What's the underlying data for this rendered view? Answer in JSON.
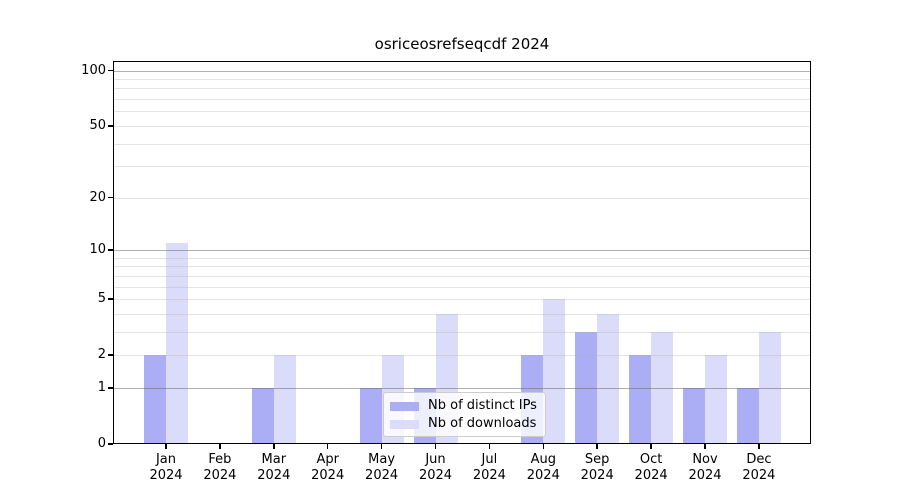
{
  "title": "osriceosrefseqcdf 2024",
  "y_axis": {
    "ticks": [
      100,
      50,
      20,
      10,
      5,
      2,
      1,
      0
    ],
    "tick_labels": [
      "100",
      "50",
      "20",
      "10",
      "5",
      "2",
      "1",
      "0"
    ]
  },
  "x_axis": {
    "months": [
      "Jan",
      "Feb",
      "Mar",
      "Apr",
      "May",
      "Jun",
      "Jul",
      "Aug",
      "Sep",
      "Oct",
      "Nov",
      "Dec"
    ],
    "year": "2024"
  },
  "legend": {
    "items": [
      {
        "label": "Nb of distinct IPs",
        "color": "#abadf5"
      },
      {
        "label": "Nb of downloads",
        "color": "#dbdcfa"
      }
    ]
  },
  "chart_data": {
    "type": "bar",
    "title": "osriceosrefseqcdf 2024",
    "categories": [
      "Jan 2024",
      "Feb 2024",
      "Mar 2024",
      "Apr 2024",
      "May 2024",
      "Jun 2024",
      "Jul 2024",
      "Aug 2024",
      "Sep 2024",
      "Oct 2024",
      "Nov 2024",
      "Dec 2024"
    ],
    "series": [
      {
        "name": "Nb of distinct IPs",
        "color": "#abadf5",
        "values": [
          2,
          0,
          1,
          0,
          1,
          1,
          0,
          2,
          3,
          2,
          1,
          1
        ]
      },
      {
        "name": "Nb of downloads",
        "color": "#dbdcfa",
        "values": [
          11,
          0,
          2,
          0,
          2,
          4,
          0,
          5,
          4,
          3,
          2,
          3
        ]
      }
    ],
    "yscale": "log1p",
    "ylim": [
      0,
      112
    ],
    "y_ticks": [
      0,
      1,
      2,
      5,
      10,
      20,
      50,
      100
    ],
    "grid": "both",
    "legend_position": "lower center inside plot"
  }
}
